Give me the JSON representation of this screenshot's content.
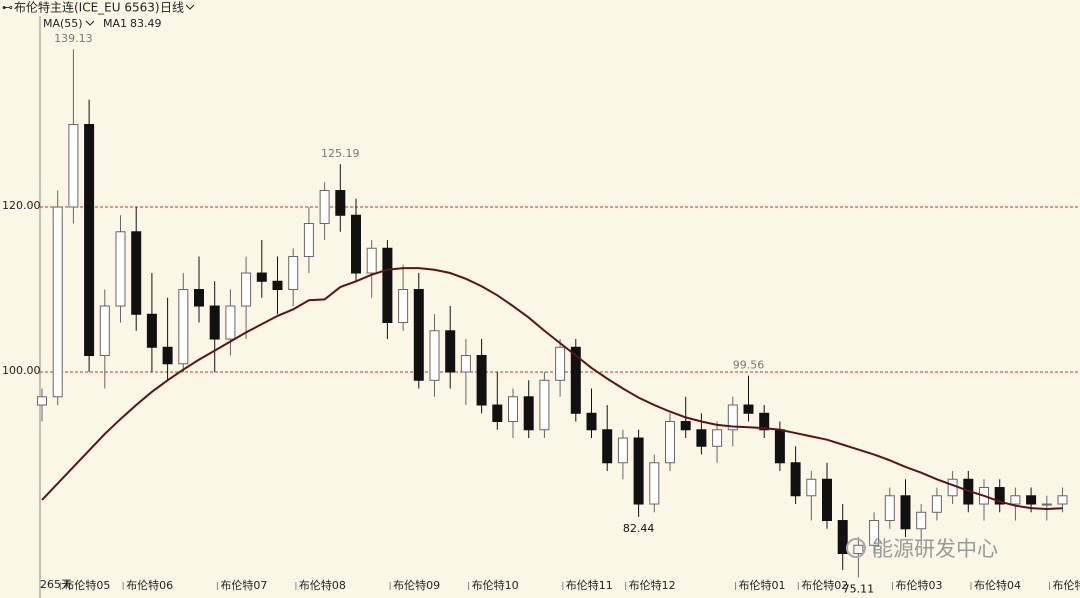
{
  "header": {
    "symbol": "布伦特主连(ICE_EU 6563)",
    "period": "日线"
  },
  "chart_data": {
    "type": "candlestick",
    "indicator": "MA(55)",
    "categories": [
      null,
      null,
      "布伦特05",
      null,
      null,
      null,
      "布伦特06",
      null,
      null,
      null,
      null,
      null,
      "布伦特07",
      null,
      null,
      null,
      null,
      "布伦特08",
      null,
      null,
      null,
      null,
      null,
      "布伦特09",
      null,
      null,
      null,
      null,
      "布伦特10",
      null,
      null,
      null,
      null,
      null,
      "布伦特11",
      null,
      null,
      null,
      "布伦特12",
      null,
      null,
      null,
      null,
      null,
      null,
      "布伦特01",
      null,
      null,
      null,
      "布伦特02",
      null,
      null,
      null,
      null,
      null,
      "布伦特03",
      null,
      null,
      null,
      null,
      "布伦特04",
      null,
      null,
      null,
      null,
      "布伦特05"
    ],
    "open": [
      96,
      97,
      120,
      130,
      102,
      108,
      117,
      107,
      103,
      101,
      110,
      108,
      104,
      108,
      112,
      111,
      110,
      114,
      118,
      122,
      119,
      112,
      115,
      106,
      110,
      99,
      105,
      100,
      102,
      96,
      94,
      97,
      93,
      99,
      103,
      95,
      93,
      89,
      92,
      84,
      89,
      94,
      93,
      91,
      93,
      96,
      95,
      93,
      89,
      85,
      87,
      82,
      78,
      79,
      82,
      85,
      81,
      83,
      85,
      87,
      84,
      86,
      84,
      85,
      84,
      84
    ],
    "high": [
      98,
      122,
      139.13,
      133,
      110,
      119,
      120,
      112,
      109,
      112,
      114,
      111,
      110,
      114,
      116,
      114,
      115,
      120,
      123,
      125.19,
      121,
      116,
      116,
      113,
      112,
      107,
      108,
      104,
      104,
      100,
      98,
      99,
      100,
      104,
      104,
      98,
      96,
      93,
      93,
      90,
      95,
      97,
      95,
      94,
      97,
      99.56,
      96,
      94,
      91,
      88,
      89,
      84,
      80,
      83,
      86,
      87,
      84,
      86,
      88,
      88,
      87,
      87,
      86,
      86,
      85,
      86
    ],
    "low": [
      94,
      96,
      118,
      100,
      98,
      106,
      105,
      100,
      99,
      100,
      106,
      100,
      102,
      104,
      109,
      107,
      108,
      112,
      116,
      117,
      111,
      109,
      104,
      105,
      98,
      97,
      98,
      96,
      95,
      93,
      92,
      92,
      92,
      97,
      94,
      92,
      88,
      87,
      82.44,
      83,
      88,
      92,
      90,
      89,
      91,
      94,
      92,
      88,
      84,
      82,
      81,
      76,
      75.11,
      78,
      81,
      80,
      79,
      82,
      84,
      83,
      82,
      83,
      82,
      83,
      82,
      83
    ],
    "close": [
      97,
      120,
      130,
      102,
      108,
      117,
      107,
      103,
      101,
      110,
      108,
      104,
      108,
      112,
      111,
      110,
      114,
      118,
      122,
      119,
      112,
      115,
      106,
      110,
      99,
      105,
      100,
      102,
      96,
      94,
      97,
      93,
      99,
      103,
      95,
      93,
      89,
      92,
      84,
      89,
      94,
      93,
      91,
      93,
      96,
      95,
      93,
      89,
      85,
      87,
      82,
      78,
      79,
      82,
      85,
      81,
      83,
      85,
      87,
      84,
      86,
      84,
      85,
      84,
      84,
      85
    ],
    "ma": {
      "name": "MA1",
      "color": "#5a1414",
      "values": [
        84.5,
        86.5,
        88.5,
        90.5,
        92.5,
        94.3,
        96,
        97.6,
        99,
        100.3,
        101.5,
        102.6,
        103.7,
        104.8,
        105.8,
        106.8,
        107.6,
        108.7,
        108.8,
        110.3,
        111,
        111.8,
        112.4,
        112.6,
        112.6,
        112.4,
        112,
        111.3,
        110.4,
        109.3,
        108,
        106.6,
        105,
        103.5,
        102,
        100.5,
        99.2,
        98,
        96.9,
        96,
        95.2,
        94.5,
        94,
        93.6,
        93.4,
        93.3,
        93.2,
        93,
        92.6,
        92.2,
        91.8,
        91.2,
        90.6,
        90,
        89.3,
        88.5,
        87.8,
        87,
        86.3,
        85.6,
        85,
        84.3,
        83.8,
        83.5,
        83.4,
        83.49
      ]
    },
    "up_color": "#ffffff",
    "down_color": "#111111",
    "ylim": [
      74.5,
      142.9
    ],
    "yticks": [
      {
        "value": 100,
        "label": "100.00"
      },
      {
        "value": 120,
        "label": "120.00"
      }
    ],
    "grid": true,
    "annotations": [
      "139.13",
      "125.19",
      "99.56",
      "82.44",
      "75.11"
    ],
    "range_label": "265天"
  },
  "watermark": "能源研发中心"
}
